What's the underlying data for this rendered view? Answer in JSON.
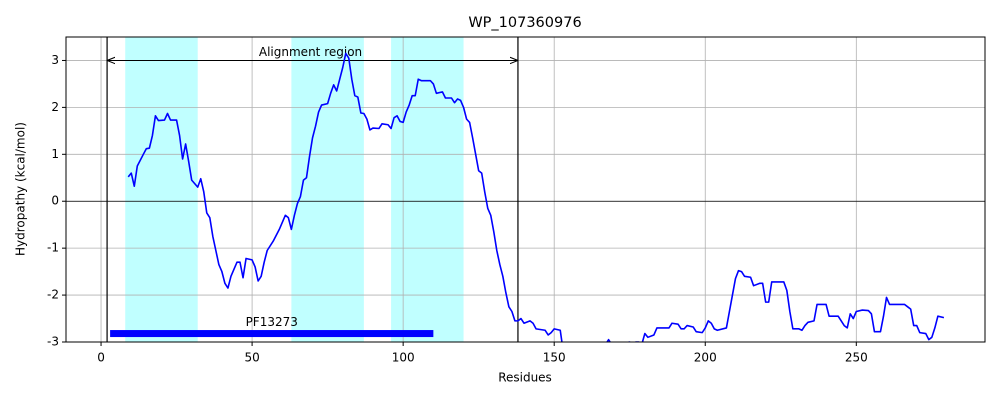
{
  "chart_data": {
    "type": "line",
    "title": "WP_107360976",
    "x_label": "Residues",
    "y_label": "Hydropathy (kcal/mol)",
    "color": "#0000ff",
    "xlim": [
      -11.6,
      292.6
    ],
    "ylim": [
      -3,
      3.5
    ],
    "xticks": [
      0,
      50,
      100,
      150,
      200,
      250
    ],
    "yticks": [
      -3,
      -2,
      -1,
      0,
      1,
      2,
      3
    ],
    "grid": true,
    "hline": 0,
    "spans": [
      [
        8,
        32
      ],
      [
        63,
        87
      ],
      [
        96,
        120
      ]
    ],
    "span_color": "#c0ffff",
    "alignment_region": {
      "label": "Alignment region",
      "start": 2,
      "end": 138,
      "y": 3
    },
    "domains": [
      {
        "name": "PF13273",
        "start": 3,
        "end": 110,
        "y": -2.82,
        "color": "#0000ff"
      }
    ],
    "x": [
      9,
      10,
      11,
      12,
      14,
      15,
      16,
      17,
      18,
      19,
      21,
      22,
      23,
      25,
      26,
      27,
      28,
      29,
      30,
      32,
      33,
      34,
      35,
      36,
      37,
      38,
      39,
      40,
      41,
      42,
      43,
      45,
      46,
      47,
      48,
      50,
      51,
      52,
      53,
      54,
      55,
      57,
      59,
      61,
      62,
      63,
      64,
      65,
      66,
      67,
      68,
      69,
      70,
      71,
      72,
      73,
      75,
      76,
      77,
      78,
      79,
      80,
      81,
      82,
      83,
      84,
      85,
      86,
      87,
      88,
      89,
      90,
      92,
      93,
      95,
      96,
      97,
      98,
      99,
      100,
      101,
      102,
      103,
      104,
      105,
      106,
      109,
      110,
      111,
      113,
      114,
      116,
      117,
      118,
      119,
      120,
      121,
      122,
      123,
      124,
      125,
      126,
      127,
      128,
      129,
      130,
      131,
      132,
      133,
      134,
      135,
      136,
      137,
      138,
      139,
      140,
      142,
      143,
      144,
      147,
      148,
      149,
      150,
      152,
      153,
      154,
      156,
      160,
      164,
      167,
      168,
      169,
      171,
      173,
      175,
      176,
      177,
      178,
      179,
      180,
      181,
      183,
      184,
      188,
      189,
      191,
      192,
      193,
      194,
      196,
      197,
      199,
      200,
      201,
      202,
      203,
      204,
      207,
      208,
      209,
      210,
      211,
      212,
      213,
      215,
      216,
      218,
      219,
      220,
      221,
      222,
      226,
      227,
      228,
      229,
      231,
      232,
      233,
      234,
      236,
      237,
      240,
      241,
      244,
      246,
      247,
      248,
      249,
      250,
      252,
      254,
      255,
      256,
      258,
      259,
      260,
      261,
      264,
      266,
      267,
      268,
      269,
      270,
      271,
      273,
      274,
      275,
      276,
      277,
      279
    ],
    "values": [
      0.52,
      0.6,
      0.32,
      0.75,
      1.0,
      1.12,
      1.13,
      1.4,
      1.82,
      1.72,
      1.73,
      1.87,
      1.73,
      1.73,
      1.4,
      0.9,
      1.22,
      0.85,
      0.45,
      0.3,
      0.48,
      0.2,
      -0.25,
      -0.35,
      -0.75,
      -1.05,
      -1.35,
      -1.5,
      -1.75,
      -1.85,
      -1.6,
      -1.3,
      -1.3,
      -1.63,
      -1.22,
      -1.25,
      -1.4,
      -1.7,
      -1.6,
      -1.3,
      -1.05,
      -0.85,
      -0.6,
      -0.3,
      -0.35,
      -0.6,
      -0.3,
      -0.05,
      0.1,
      0.45,
      0.5,
      0.95,
      1.35,
      1.6,
      1.9,
      2.05,
      2.08,
      2.3,
      2.48,
      2.35,
      2.6,
      2.85,
      3.15,
      3.05,
      2.6,
      2.25,
      2.22,
      1.88,
      1.87,
      1.75,
      1.52,
      1.56,
      1.55,
      1.65,
      1.63,
      1.55,
      1.78,
      1.82,
      1.7,
      1.68,
      1.9,
      2.05,
      2.25,
      2.25,
      2.6,
      2.57,
      2.57,
      2.5,
      2.3,
      2.33,
      2.2,
      2.2,
      2.1,
      2.18,
      2.15,
      2.0,
      1.75,
      1.68,
      1.35,
      1.0,
      0.65,
      0.6,
      0.2,
      -0.15,
      -0.3,
      -0.65,
      -1.05,
      -1.35,
      -1.6,
      -1.95,
      -2.25,
      -2.35,
      -2.55,
      -2.55,
      -2.5,
      -2.6,
      -2.55,
      -2.6,
      -2.72,
      -2.75,
      -2.85,
      -2.8,
      -2.72,
      -2.75,
      -3.2,
      -3.3,
      -3.4,
      -3.5,
      -3.3,
      -3.05,
      -2.95,
      -3.05,
      -3.1,
      -3.02,
      -3.0,
      -3.05,
      -3.0,
      -3.0,
      -3.05,
      -2.82,
      -2.9,
      -2.85,
      -2.7,
      -2.7,
      -2.6,
      -2.62,
      -2.72,
      -2.72,
      -2.65,
      -2.68,
      -2.78,
      -2.8,
      -2.7,
      -2.55,
      -2.6,
      -2.72,
      -2.75,
      -2.7,
      -2.35,
      -2.0,
      -1.65,
      -1.48,
      -1.5,
      -1.6,
      -1.62,
      -1.8,
      -1.75,
      -1.75,
      -2.15,
      -2.15,
      -1.72,
      -1.72,
      -1.9,
      -2.35,
      -2.72,
      -2.72,
      -2.75,
      -2.65,
      -2.58,
      -2.55,
      -2.2,
      -2.2,
      -2.45,
      -2.45,
      -2.65,
      -2.7,
      -2.4,
      -2.5,
      -2.35,
      -2.32,
      -2.33,
      -2.4,
      -2.78,
      -2.78,
      -2.45,
      -2.05,
      -2.2,
      -2.2,
      -2.2,
      -2.25,
      -2.3,
      -2.65,
      -2.65,
      -2.8,
      -2.82,
      -2.95,
      -2.9,
      -2.7,
      -2.45,
      -2.48
    ]
  }
}
